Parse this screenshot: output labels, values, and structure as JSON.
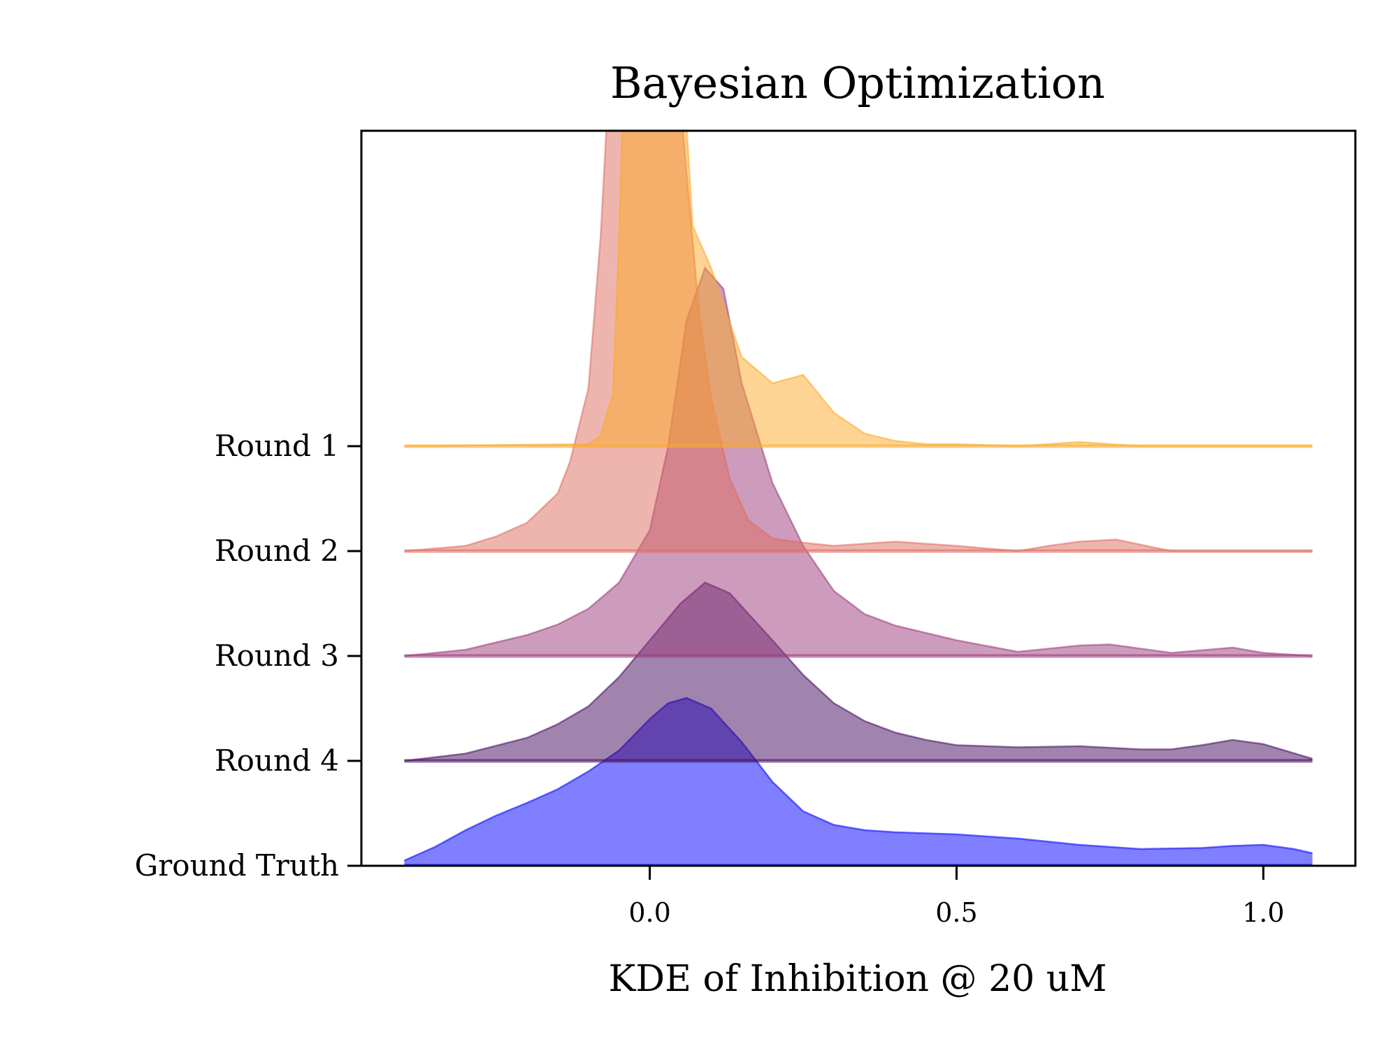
{
  "chart_data": {
    "type": "area",
    "title": "Bayesian Optimization",
    "xlabel": "KDE of Inhibition @ 20 uM",
    "ylabel": "",
    "xlim": [
      -0.47,
      1.15
    ],
    "xticks": [
      {
        "value": 0.0,
        "label": "0.0"
      },
      {
        "value": 0.5,
        "label": "0.5"
      },
      {
        "value": 1.0,
        "label": "1.0"
      }
    ],
    "grid": false,
    "legend": "none",
    "series": [
      {
        "name": "Ground Truth",
        "color": "#0000ff",
        "baseline": 0,
        "x": [
          -0.4,
          -0.35,
          -0.3,
          -0.25,
          -0.2,
          -0.15,
          -0.1,
          -0.05,
          0.0,
          0.03,
          0.06,
          0.1,
          0.15,
          0.2,
          0.25,
          0.3,
          0.35,
          0.4,
          0.5,
          0.6,
          0.7,
          0.8,
          0.9,
          0.95,
          1.0,
          1.05,
          1.08
        ],
        "y": [
          0.05,
          0.18,
          0.34,
          0.48,
          0.6,
          0.73,
          0.9,
          1.1,
          1.4,
          1.55,
          1.6,
          1.5,
          1.18,
          0.8,
          0.52,
          0.39,
          0.34,
          0.32,
          0.3,
          0.26,
          0.2,
          0.16,
          0.17,
          0.19,
          0.2,
          0.16,
          0.12
        ]
      },
      {
        "name": "Round 4",
        "color": "#440a5e",
        "baseline": 1,
        "x": [
          -0.4,
          -0.3,
          -0.2,
          -0.15,
          -0.1,
          -0.05,
          0.0,
          0.05,
          0.09,
          0.13,
          0.2,
          0.25,
          0.3,
          0.35,
          0.4,
          0.45,
          0.5,
          0.6,
          0.7,
          0.8,
          0.85,
          0.9,
          0.95,
          1.0,
          1.08
        ],
        "y": [
          0.0,
          0.07,
          0.22,
          0.35,
          0.52,
          0.8,
          1.15,
          1.5,
          1.7,
          1.6,
          1.15,
          0.82,
          0.55,
          0.38,
          0.27,
          0.2,
          0.15,
          0.13,
          0.14,
          0.11,
          0.11,
          0.15,
          0.2,
          0.16,
          0.02
        ]
      },
      {
        "name": "Round 3",
        "color": "#9b3a7a",
        "baseline": 2,
        "x": [
          -0.4,
          -0.3,
          -0.2,
          -0.15,
          -0.1,
          -0.05,
          0.0,
          0.03,
          0.06,
          0.09,
          0.12,
          0.15,
          0.2,
          0.25,
          0.3,
          0.35,
          0.4,
          0.5,
          0.6,
          0.7,
          0.75,
          0.85,
          0.95,
          1.0,
          1.08
        ],
        "y": [
          0.0,
          0.06,
          0.2,
          0.3,
          0.45,
          0.7,
          1.2,
          2.0,
          3.2,
          3.7,
          3.5,
          2.6,
          1.65,
          1.05,
          0.62,
          0.4,
          0.29,
          0.15,
          0.04,
          0.1,
          0.11,
          0.03,
          0.08,
          0.03,
          0.0
        ]
      },
      {
        "name": "Round 2",
        "color": "#de6c60",
        "baseline": 3,
        "x": [
          -0.4,
          -0.3,
          -0.25,
          -0.2,
          -0.15,
          -0.13,
          -0.1,
          -0.08,
          -0.06,
          -0.04,
          0.0,
          0.04,
          0.06,
          0.08,
          0.1,
          0.13,
          0.16,
          0.2,
          0.25,
          0.3,
          0.4,
          0.5,
          0.6,
          0.65,
          0.7,
          0.76,
          0.85,
          1.0,
          1.08
        ],
        "y": [
          0.0,
          0.05,
          0.14,
          0.27,
          0.55,
          0.85,
          1.55,
          3.0,
          5.2,
          6.5,
          6.5,
          5.0,
          3.6,
          2.3,
          1.45,
          0.7,
          0.3,
          0.12,
          0.08,
          0.05,
          0.09,
          0.05,
          0.0,
          0.05,
          0.09,
          0.11,
          0.0,
          0.0,
          0.0
        ]
      },
      {
        "name": "Round 1",
        "color": "#fbaa27",
        "baseline": 4,
        "x": [
          -0.4,
          -0.1,
          -0.08,
          -0.06,
          -0.05,
          -0.03,
          0.0,
          0.03,
          0.05,
          0.07,
          0.1,
          0.12,
          0.15,
          0.2,
          0.25,
          0.3,
          0.35,
          0.4,
          0.45,
          0.5,
          0.6,
          0.7,
          0.8,
          1.0,
          1.08
        ],
        "y": [
          0.0,
          0.02,
          0.1,
          0.5,
          2.0,
          6.0,
          6.5,
          6.5,
          4.0,
          2.1,
          1.7,
          1.35,
          0.85,
          0.6,
          0.68,
          0.32,
          0.12,
          0.05,
          0.02,
          0.02,
          0.0,
          0.04,
          0.0,
          0.0,
          0.0
        ]
      }
    ]
  }
}
